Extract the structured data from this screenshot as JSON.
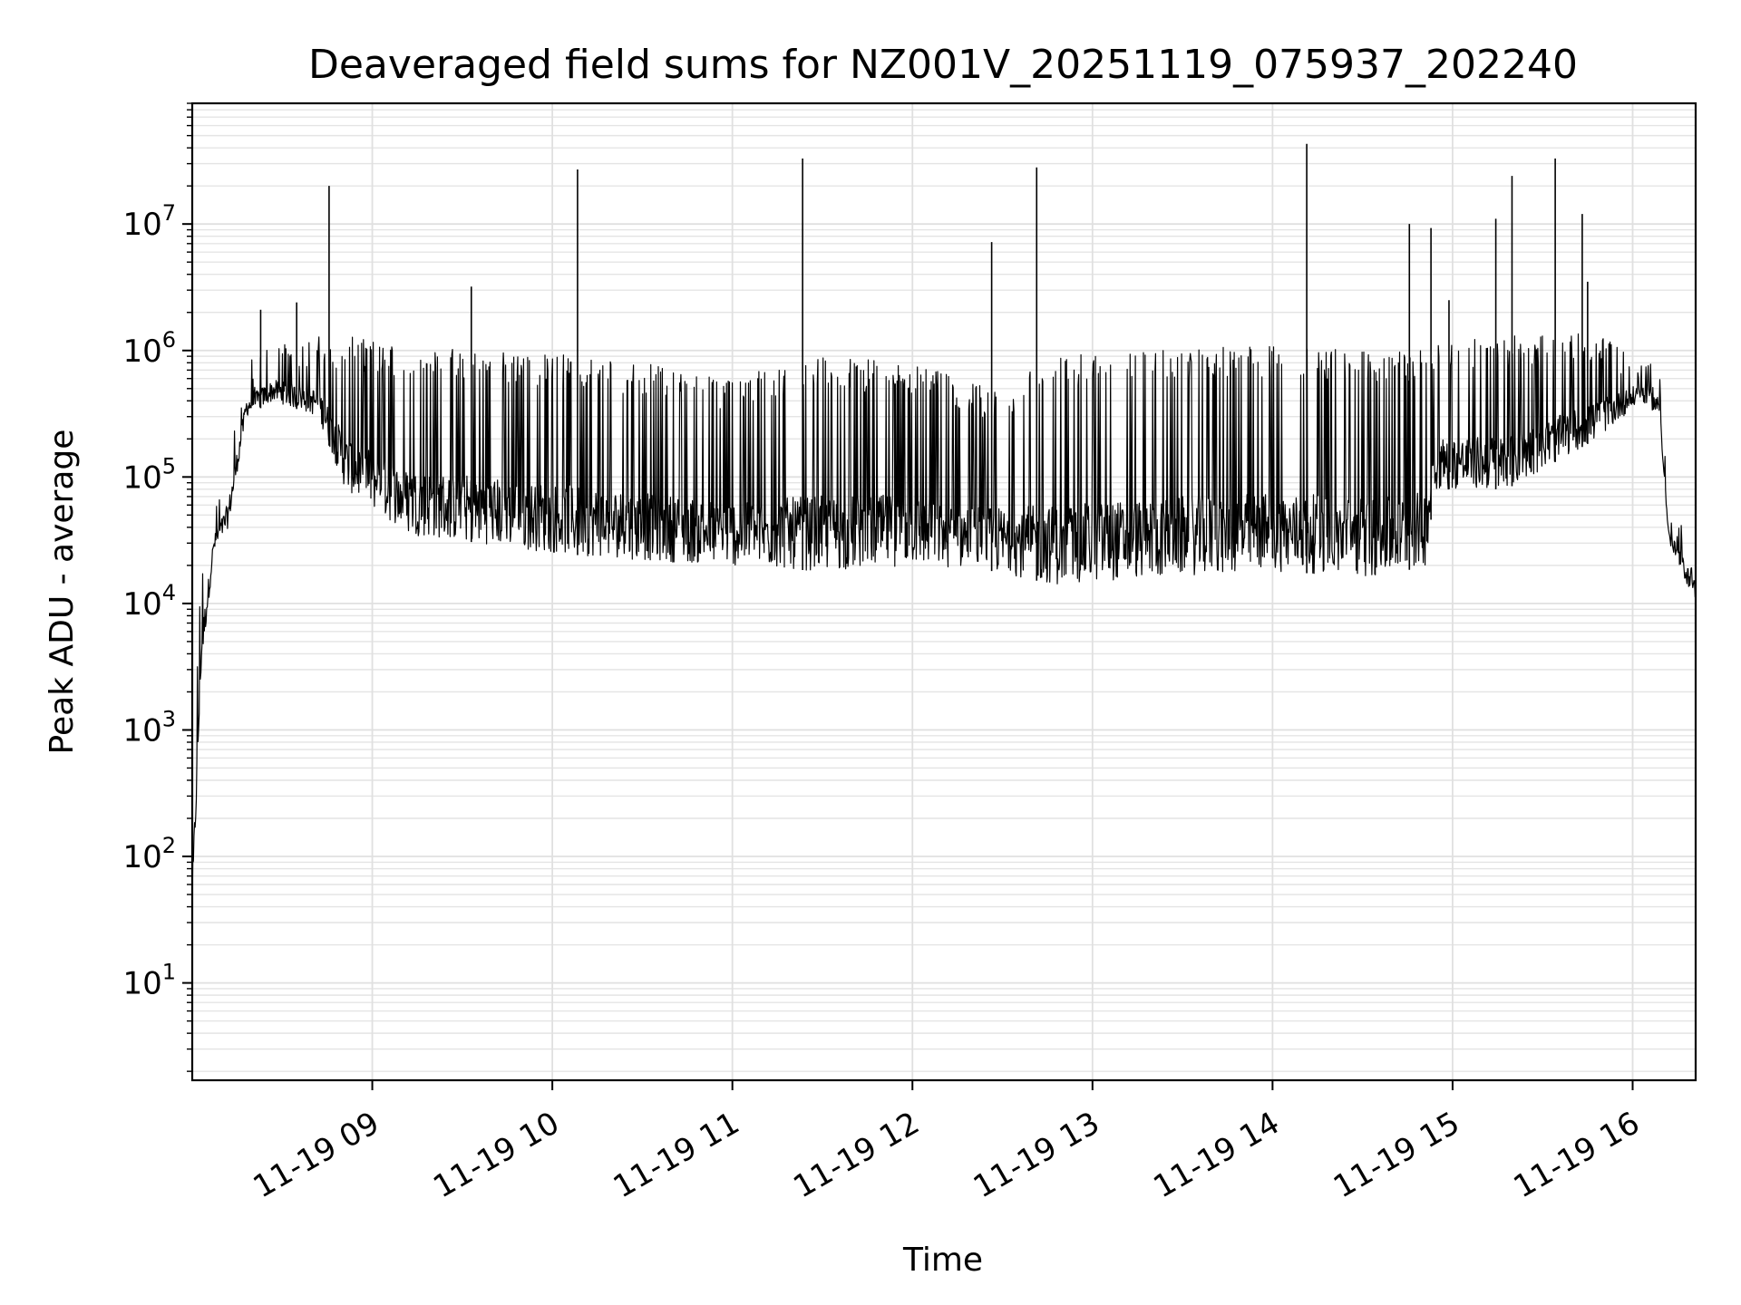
{
  "chart_data": {
    "type": "line",
    "title": "Deaveraged field sums for NZ001V_20251119_075937_202240",
    "xlabel": "Time",
    "ylabel": "Peak ADU - average",
    "yscale": "log",
    "ylim": [
      1.7,
      90000000
    ],
    "xlim_hours": [
      8.0,
      16.35
    ],
    "grid": true,
    "legend": "none",
    "line_color": "#000000",
    "x_ticks": [
      {
        "hour": 9,
        "label": "11-19 09"
      },
      {
        "hour": 10,
        "label": "11-19 10"
      },
      {
        "hour": 11,
        "label": "11-19 11"
      },
      {
        "hour": 12,
        "label": "11-19 12"
      },
      {
        "hour": 13,
        "label": "11-19 13"
      },
      {
        "hour": 14,
        "label": "11-19 14"
      },
      {
        "hour": 15,
        "label": "11-19 15"
      },
      {
        "hour": 16,
        "label": "11-19 16"
      }
    ],
    "y_ticks": [
      {
        "exp": 1,
        "base": "10",
        "sup": "1"
      },
      {
        "exp": 2,
        "base": "10",
        "sup": "2"
      },
      {
        "exp": 3,
        "base": "10",
        "sup": "3"
      },
      {
        "exp": 4,
        "base": "10",
        "sup": "4"
      },
      {
        "exp": 5,
        "base": "10",
        "sup": "5"
      },
      {
        "exp": 6,
        "base": "10",
        "sup": "6"
      },
      {
        "exp": 7,
        "base": "10",
        "sup": "7"
      }
    ],
    "envelope": [
      {
        "t": 8.0,
        "lo": 30,
        "hi": 300
      },
      {
        "t": 8.05,
        "lo": 3000,
        "hi": 20000
      },
      {
        "t": 8.12,
        "lo": 25000,
        "hi": 60000
      },
      {
        "t": 8.2,
        "lo": 40000,
        "hi": 150000
      },
      {
        "t": 8.3,
        "lo": 300000,
        "hi": 800000
      },
      {
        "t": 8.45,
        "lo": 400000,
        "hi": 1200000
      },
      {
        "t": 8.7,
        "lo": 300000,
        "hi": 1300000
      },
      {
        "t": 8.85,
        "lo": 80000,
        "hi": 1300000
      },
      {
        "t": 9.2,
        "lo": 35000,
        "hi": 1100000
      },
      {
        "t": 9.6,
        "lo": 30000,
        "hi": 1000000
      },
      {
        "t": 10.0,
        "lo": 25000,
        "hi": 950000
      },
      {
        "t": 10.5,
        "lo": 22000,
        "hi": 800000
      },
      {
        "t": 10.95,
        "lo": 20000,
        "hi": 600000
      },
      {
        "t": 11.5,
        "lo": 18000,
        "hi": 900000
      },
      {
        "t": 12.0,
        "lo": 20000,
        "hi": 800000
      },
      {
        "t": 12.45,
        "lo": 18000,
        "hi": 500000
      },
      {
        "t": 12.8,
        "lo": 14000,
        "hi": 900000
      },
      {
        "t": 13.3,
        "lo": 16000,
        "hi": 1000000
      },
      {
        "t": 14.0,
        "lo": 18000,
        "hi": 1100000
      },
      {
        "t": 14.6,
        "lo": 16000,
        "hi": 1000000
      },
      {
        "t": 14.85,
        "lo": 20000,
        "hi": 1000000
      },
      {
        "t": 14.9,
        "lo": 80000,
        "hi": 1200000
      },
      {
        "t": 15.3,
        "lo": 80000,
        "hi": 1300000
      },
      {
        "t": 15.8,
        "lo": 200000,
        "hi": 1400000
      },
      {
        "t": 16.05,
        "lo": 400000,
        "hi": 1000000
      },
      {
        "t": 16.15,
        "lo": 300000,
        "hi": 800000
      },
      {
        "t": 16.2,
        "lo": 30000,
        "hi": 60000
      },
      {
        "t": 16.35,
        "lo": 10000,
        "hi": 30000
      }
    ],
    "spikes": [
      {
        "t": 8.38,
        "v": 2100000
      },
      {
        "t": 8.58,
        "v": 2400000
      },
      {
        "t": 8.76,
        "v": 20000000
      },
      {
        "t": 9.55,
        "v": 3200000
      },
      {
        "t": 10.14,
        "v": 27000000
      },
      {
        "t": 11.39,
        "v": 33000000
      },
      {
        "t": 12.44,
        "v": 7200000
      },
      {
        "t": 12.69,
        "v": 28000000
      },
      {
        "t": 14.19,
        "v": 43000000
      },
      {
        "t": 14.76,
        "v": 10000000
      },
      {
        "t": 14.88,
        "v": 9300000
      },
      {
        "t": 14.98,
        "v": 2500000
      },
      {
        "t": 15.24,
        "v": 11000000
      },
      {
        "t": 15.33,
        "v": 24000000
      },
      {
        "t": 15.57,
        "v": 33000000
      },
      {
        "t": 15.72,
        "v": 12000000
      },
      {
        "t": 15.75,
        "v": 3500000
      }
    ]
  }
}
